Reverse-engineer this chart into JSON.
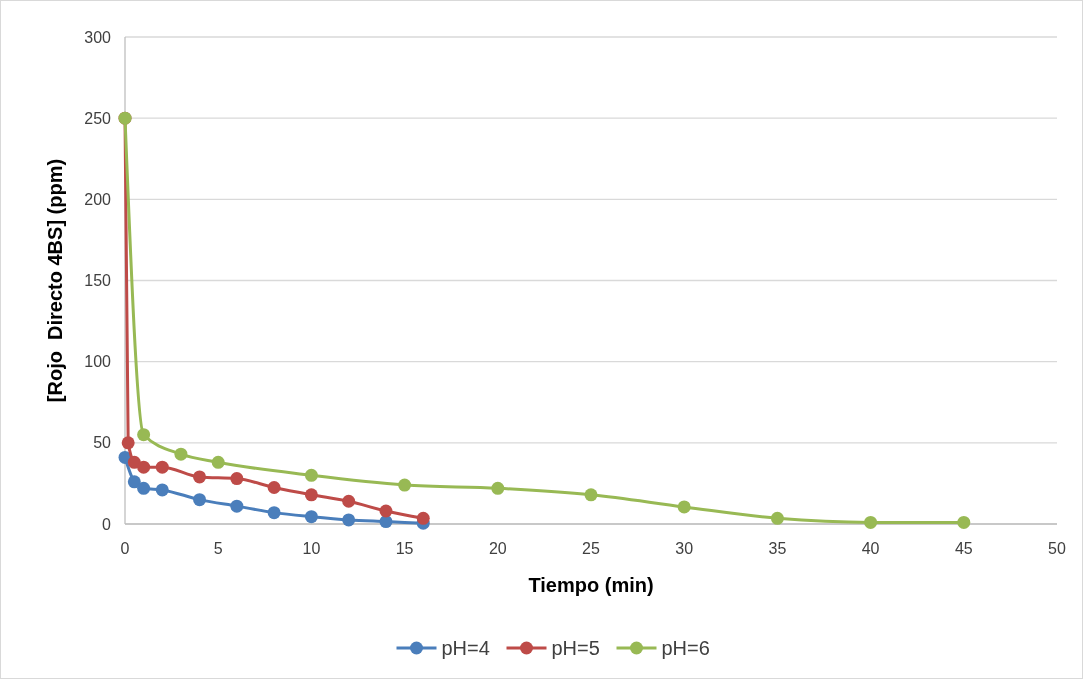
{
  "chart_data": {
    "type": "line",
    "xlabel": "Tiempo (min)",
    "ylabel": "[Rojo  Directo 4BS] (ppm)",
    "xlim": [
      0,
      50
    ],
    "xticks": [
      0,
      5,
      10,
      15,
      20,
      25,
      30,
      35,
      40,
      45,
      50
    ],
    "ylim": [
      0,
      300
    ],
    "yticks": [
      0,
      50,
      100,
      150,
      200,
      250,
      300
    ],
    "grid": "y",
    "legend": "bottom",
    "marker": "circle",
    "series": [
      {
        "name": "pH=4",
        "color": "#4a7ebb",
        "x": [
          0,
          0.5,
          1,
          2,
          4,
          6,
          8,
          10,
          12,
          14,
          16
        ],
        "values": [
          41,
          26,
          22,
          21,
          15,
          11,
          7,
          4.5,
          2.5,
          1.5,
          0.5
        ]
      },
      {
        "name": "pH=5",
        "color": "#be4b48",
        "x": [
          0,
          0.17,
          0.5,
          1,
          2,
          4,
          6,
          8,
          10,
          12,
          14,
          16
        ],
        "values": [
          250,
          50,
          38,
          35,
          35,
          29,
          28,
          22.5,
          18,
          14,
          8,
          3.5
        ]
      },
      {
        "name": "pH=6",
        "color": "#98b954",
        "x": [
          0,
          1,
          3,
          5,
          10,
          15,
          20,
          25,
          30,
          35,
          40,
          45
        ],
        "values": [
          250,
          55,
          43,
          38,
          30,
          24,
          22,
          18,
          10.5,
          3.5,
          1,
          1
        ]
      }
    ]
  }
}
